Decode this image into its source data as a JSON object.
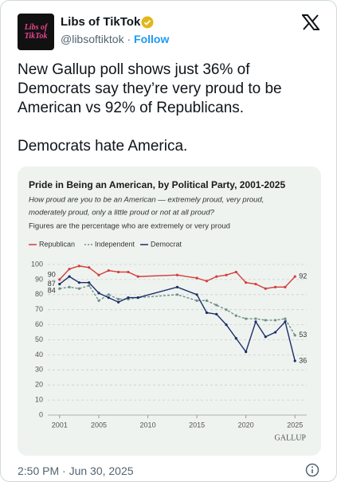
{
  "tweet": {
    "avatar_text": "Libs of TikTok",
    "name": "Libs of TikTok",
    "handle": "@libsoftiktok",
    "separator": "·",
    "follow": "Follow",
    "paragraphs": [
      "New Gallup poll shows just 36% of Democrats say they’re very proud to be American vs 92% of Republicans.",
      "Democrats hate America."
    ],
    "timestamp": "2:50 PM · Jun 30, 2025"
  },
  "chart_data": {
    "type": "line",
    "title": "Pride in Being an American, by Political Party, 2001-2025",
    "subtitle": [
      "How proud are you to be an American — extremely proud, very proud,",
      "moderately proud, only a little proud or not at all proud?"
    ],
    "note": "Figures are the percentage who are extremely or very proud",
    "source": "GALLUP",
    "x": [
      2001,
      2002,
      2003,
      2004,
      2005,
      2006,
      2007,
      2008,
      2009,
      2013,
      2015,
      2016,
      2017,
      2018,
      2019,
      2020,
      2021,
      2022,
      2023,
      2024,
      2025
    ],
    "series": [
      {
        "name": "Republican",
        "color": "#d63c3c",
        "dash": false,
        "values": [
          90,
          97,
          99,
          98,
          93,
          96,
          95,
          95,
          92,
          93,
          91,
          89,
          92,
          93,
          95,
          88,
          87,
          84,
          85,
          85,
          92
        ]
      },
      {
        "name": "Independent",
        "color": "#6f8f88",
        "dash": true,
        "values": [
          84,
          85,
          84,
          86,
          76,
          80,
          77,
          77,
          78,
          80,
          76,
          76,
          73,
          70,
          66,
          64,
          64,
          63,
          63,
          64,
          53
        ]
      },
      {
        "name": "Democrat",
        "color": "#1d2d6a",
        "dash": false,
        "values": [
          87,
          92,
          88,
          88,
          81,
          78,
          75,
          78,
          78,
          85,
          80,
          68,
          67,
          60,
          51,
          42,
          62,
          52,
          55,
          62,
          36
        ]
      }
    ],
    "xlim": [
      1999.8,
      2026.2
    ],
    "xticks": [
      2001,
      2005,
      2010,
      2015,
      2020,
      2025
    ],
    "ylim": [
      0,
      100
    ],
    "yticks": [
      0,
      10,
      20,
      30,
      40,
      50,
      60,
      70,
      80,
      90,
      100
    ],
    "grid": true
  }
}
